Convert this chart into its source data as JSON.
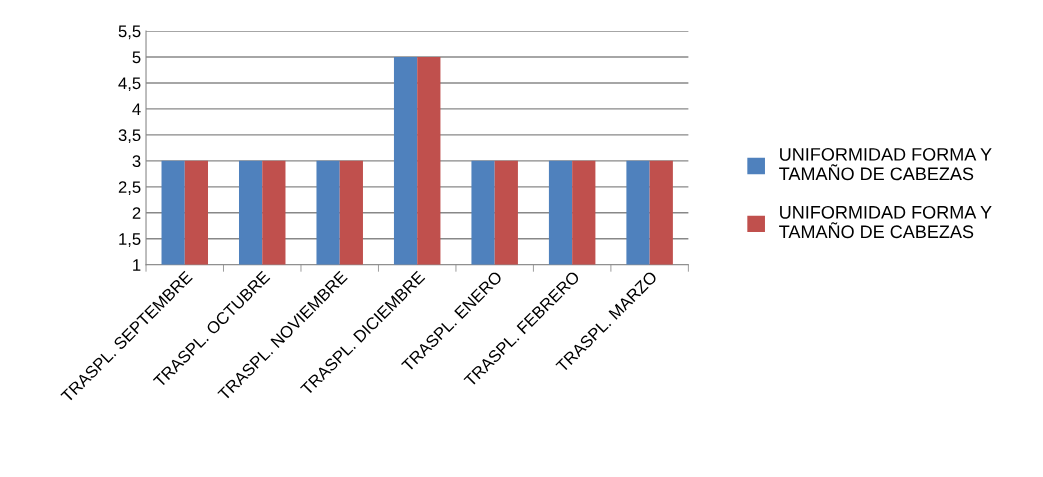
{
  "chart_data": {
    "type": "bar",
    "categories": [
      "TRASPL. SEPTEMBRE",
      "TRASPL. OCTUBRE",
      "TRASPL. NOVIEMBRE",
      "TRASPL. DICIEMBRE",
      "TRASPL. ENERO",
      "TRASPL. FEBRERO",
      "TRASPL. MARZO"
    ],
    "series": [
      {
        "name": "UNIFORMIDAD FORMA Y TAMAÑO DE CABEZAS",
        "color": "#4f81bd",
        "values": [
          3,
          3,
          3,
          5,
          3,
          3,
          3
        ]
      },
      {
        "name": "UNIFORMIDAD FORMA Y TAMAÑO DE CABEZAS",
        "color": "#c0504d",
        "values": [
          3,
          3,
          3,
          5,
          3,
          3,
          3
        ]
      }
    ],
    "ylim": [
      1,
      5.5
    ],
    "yticks": [
      1,
      {
        "value": 1.5,
        "label": "1,5"
      },
      2,
      {
        "value": 2.5,
        "label": "2,5"
      },
      3,
      {
        "value": 3.5,
        "label": "3,5"
      },
      4,
      {
        "value": 4.5,
        "label": "4,5"
      },
      5,
      {
        "value": 5.5,
        "label": "5,5"
      }
    ],
    "grid": "y",
    "legend": "right"
  }
}
